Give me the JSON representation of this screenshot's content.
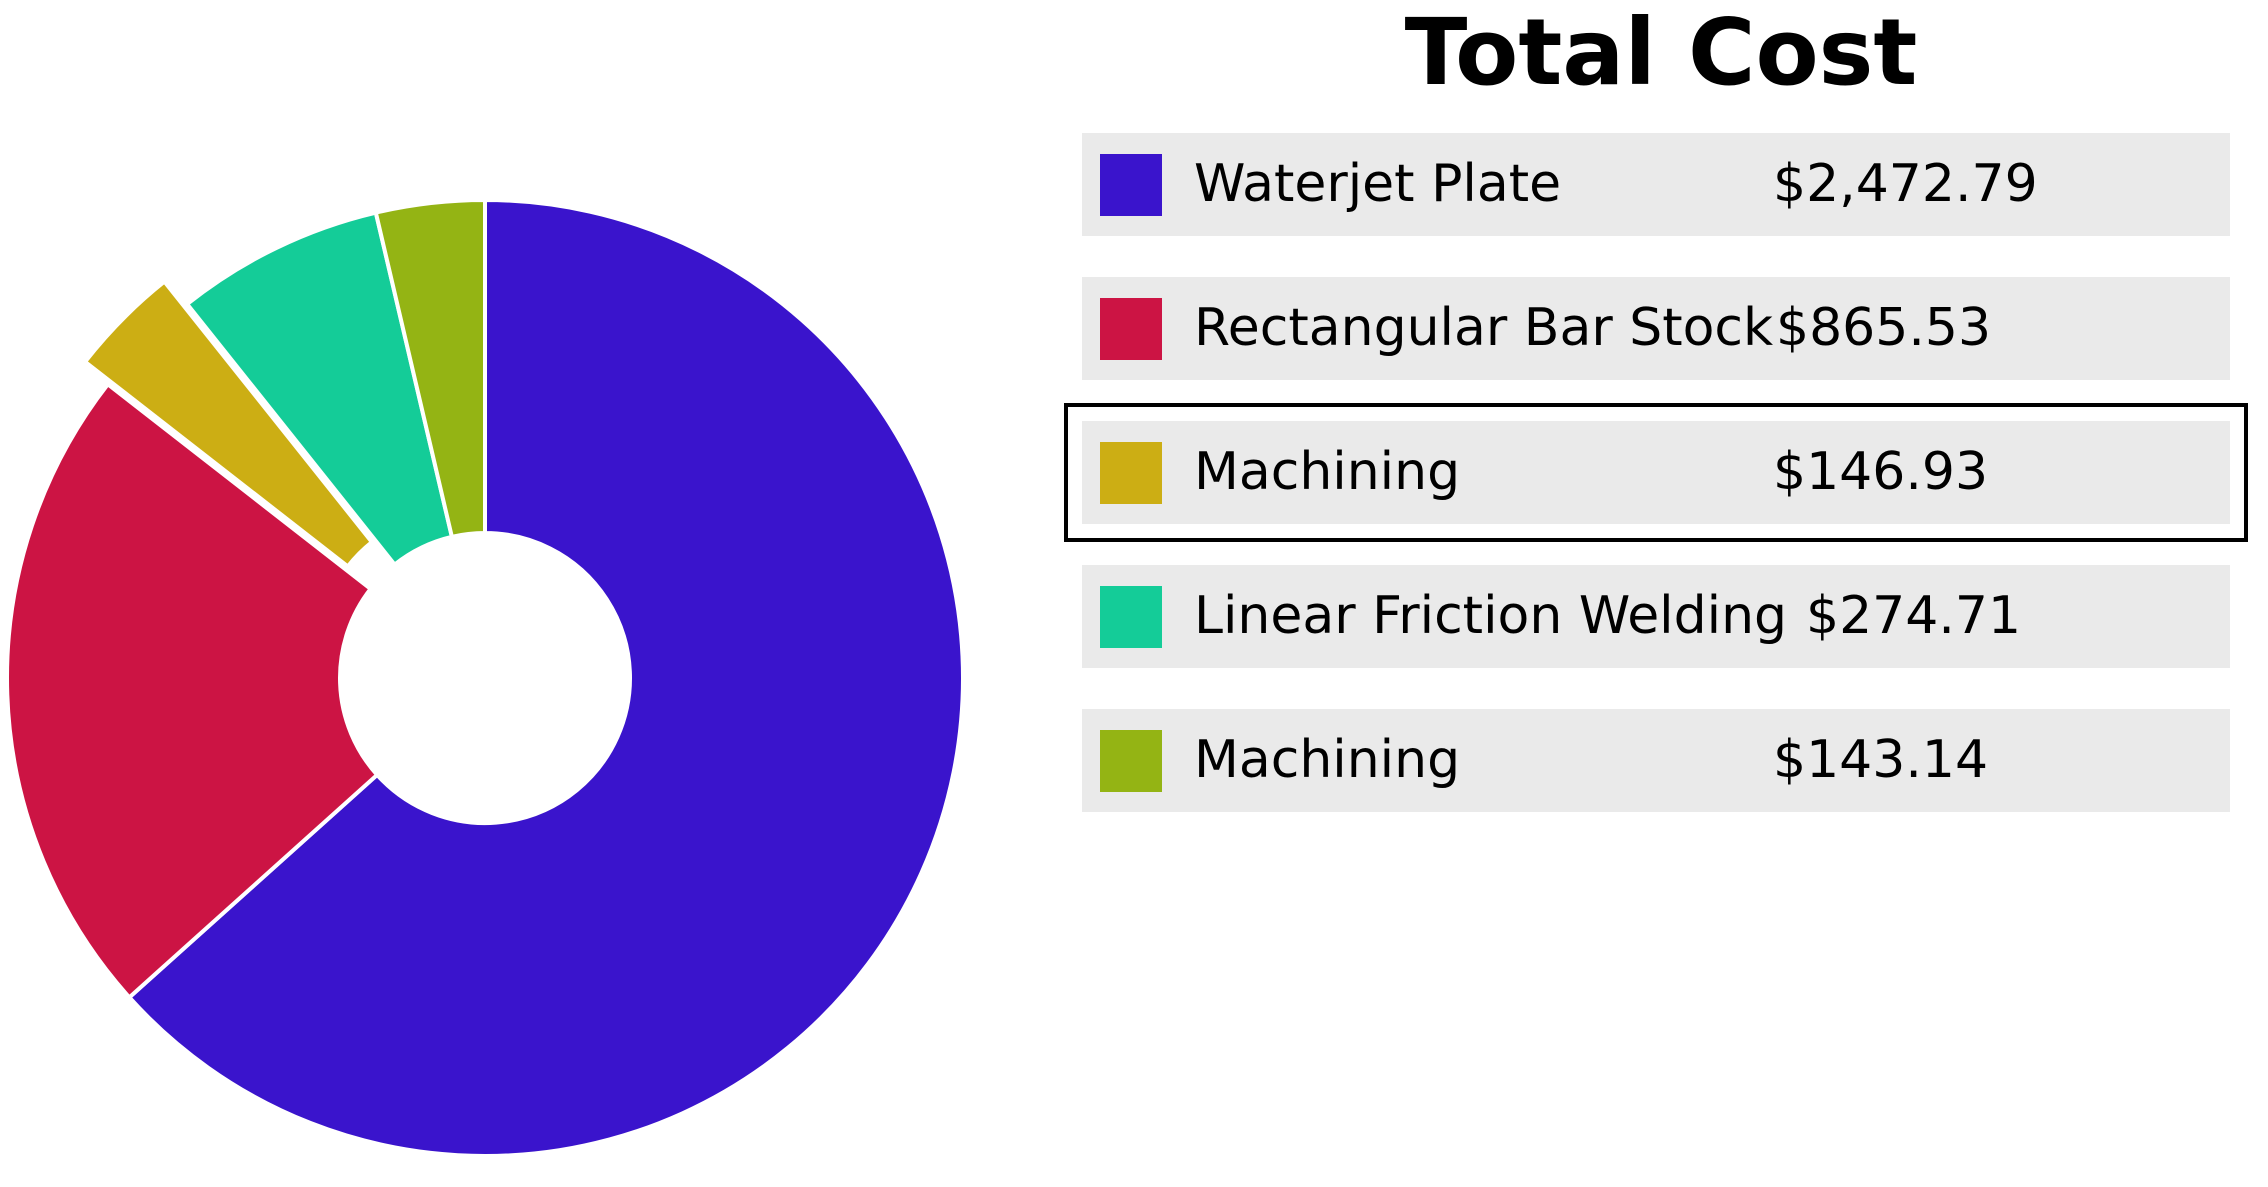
{
  "chart_data": {
    "type": "pie",
    "variant": "donut",
    "title": "Total Cost",
    "legend_position": "right",
    "selected_index": 2,
    "exploded_index": 2,
    "slices": [
      {
        "label": "Waterjet Plate",
        "value": 2472.79,
        "value_text": "$2,472.79",
        "color": "#3a14cc"
      },
      {
        "label": "Rectangular Bar Stock",
        "value": 865.53,
        "value_text": "$865.53",
        "color": "#cc1444"
      },
      {
        "label": "Machining",
        "value": 146.93,
        "value_text": "$146.93",
        "color": "#ccae14"
      },
      {
        "label": "Linear Friction Welding",
        "value": 274.71,
        "value_text": "$274.71",
        "color": "#14cc98"
      },
      {
        "label": "Machining",
        "value": 143.14,
        "value_text": "$143.14",
        "color": "#94b414"
      }
    ]
  }
}
